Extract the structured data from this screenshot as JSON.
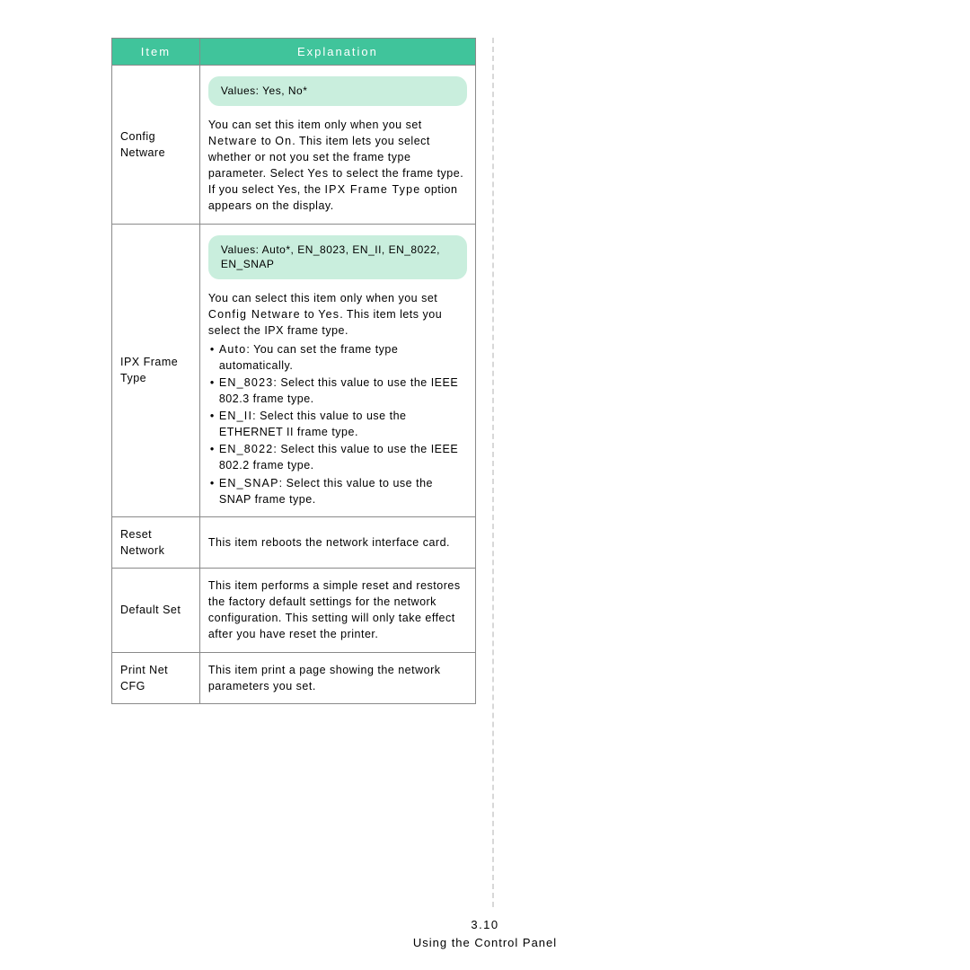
{
  "colors": {
    "header_bg": "#40c49b",
    "header_text": "#ffffff",
    "pill_bg": "#c9eedd",
    "border": "#8a8a8a",
    "divider": "#d8d8d8",
    "text": "#000000",
    "background": "#ffffff"
  },
  "table": {
    "header_item": "Item",
    "header_explanation": "Explanation",
    "rows": {
      "config_netware": {
        "item": "Config Netware",
        "values_pill": "Values: Yes, No*",
        "p1a": "You can set this item only when you set ",
        "p1b": "Netware",
        "p1c": " to ",
        "p1d": "On",
        "p1e": ". This item lets you select whether or not you set the frame type parameter. Select ",
        "p1f": "Yes",
        "p1g": " to select the frame type.",
        "p2a": "If you select Yes, the ",
        "p2b": "IPX Frame Type",
        "p2c": " option appears on the display."
      },
      "ipx": {
        "item": "IPX Frame Type",
        "values_pill": "Values: Auto*, EN_8023, EN_II, EN_8022, EN_SNAP",
        "p1a": "You can select this item only when you set ",
        "p1b": "Config Netware",
        "p1c": " to ",
        "p1d": "Yes",
        "p1e": ". This item lets you select the IPX frame type.",
        "b1a": "Auto",
        "b1b": ": You can set the frame type automatically.",
        "b2a": "EN_8023",
        "b2b": ": Select this value to use the IEEE 802.3 frame type.",
        "b3a": "EN_II",
        "b3b": ": Select this value to use the ETHERNET II frame type.",
        "b4a": "EN_8022",
        "b4b": ": Select this value to use the IEEE 802.2 frame type.",
        "b5a": "EN_SNAP",
        "b5b": ": Select this value to use the SNAP frame type."
      },
      "reset": {
        "item": "Reset Network",
        "exp": "This item reboots the network interface card."
      },
      "default_set": {
        "item": "Default Set",
        "exp": "This item performs a simple reset and restores the factory default settings for the network configuration. This setting will only take effect after you have reset the printer."
      },
      "print_cfg": {
        "item": "Print Net CFG",
        "exp": "This item print a page showing the network parameters you set."
      }
    }
  },
  "footer": {
    "page_number": "3.10",
    "section": "Using the Control Panel"
  }
}
